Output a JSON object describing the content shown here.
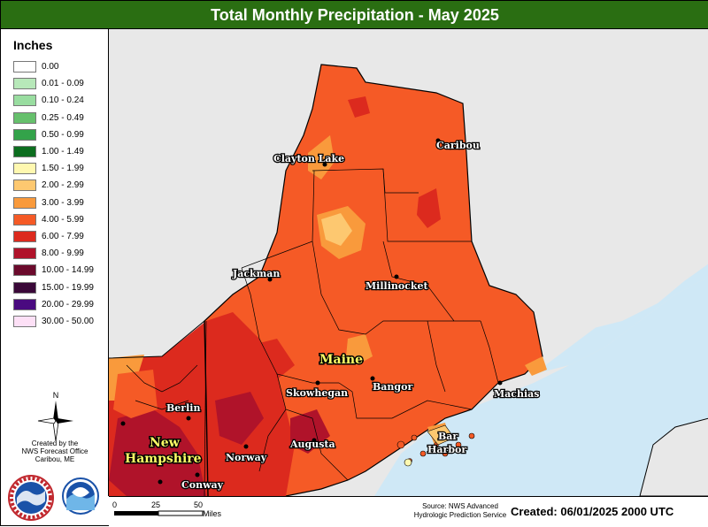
{
  "title": "Total Monthly Precipitation - May 2025",
  "legend": {
    "title": "Inches",
    "items": [
      {
        "label": "0.00",
        "color": "#ffffff"
      },
      {
        "label": "0.01 - 0.09",
        "color": "#b7e8b9"
      },
      {
        "label": "0.10 - 0.24",
        "color": "#99dda0"
      },
      {
        "label": "0.25 - 0.49",
        "color": "#66c06c"
      },
      {
        "label": "0.50 - 0.99",
        "color": "#33a34a"
      },
      {
        "label": "1.00 - 1.49",
        "color": "#0c6e1f"
      },
      {
        "label": "1.50 - 1.99",
        "color": "#fff8b0"
      },
      {
        "label": "2.00 - 2.99",
        "color": "#fdc870"
      },
      {
        "label": "3.00 - 3.99",
        "color": "#f99a3c"
      },
      {
        "label": "4.00 - 5.99",
        "color": "#f55a26"
      },
      {
        "label": "6.00 - 7.99",
        "color": "#dc2a1e"
      },
      {
        "label": "8.00 - 9.99",
        "color": "#b0132a"
      },
      {
        "label": "10.00 - 14.99",
        "color": "#6b0a2c"
      },
      {
        "label": "15.00 - 19.99",
        "color": "#3a0838"
      },
      {
        "label": "20.00 - 29.99",
        "color": "#4a0a80"
      },
      {
        "label": "30.00 - 50.00",
        "color": "#fde0f6"
      }
    ]
  },
  "north_label": "N",
  "credit": [
    "Created by the",
    "NWS Forecast Office",
    "Caribou, ME"
  ],
  "cities": {
    "clayton_lake": "Clayton Lake",
    "caribou": "Caribou",
    "jackman": "Jackman",
    "millinocket": "Millinocket",
    "skowhegan": "Skowhegan",
    "bangor": "Bangor",
    "machias": "Machias",
    "berlin": "Berlin",
    "augusta": "Augusta",
    "norway": "Norway",
    "conway": "Conway",
    "bar_harbor_1": "Bar",
    "bar_harbor_2": "Harbor"
  },
  "states": {
    "maine": "Maine",
    "nh_1": "New",
    "nh_2": "Hampshire"
  },
  "scale": {
    "ticks": [
      "0",
      "25",
      "50"
    ],
    "unit": "Miles"
  },
  "source": [
    "Source: NWS Advanced",
    "Hydrologic Prediction Service"
  ],
  "created": "Created: 06/01/2025 2000 UTC",
  "colors": {
    "water": "#cfe8f6",
    "land_outside": "#e8e8e8",
    "title_bar": "#2a6e12"
  }
}
